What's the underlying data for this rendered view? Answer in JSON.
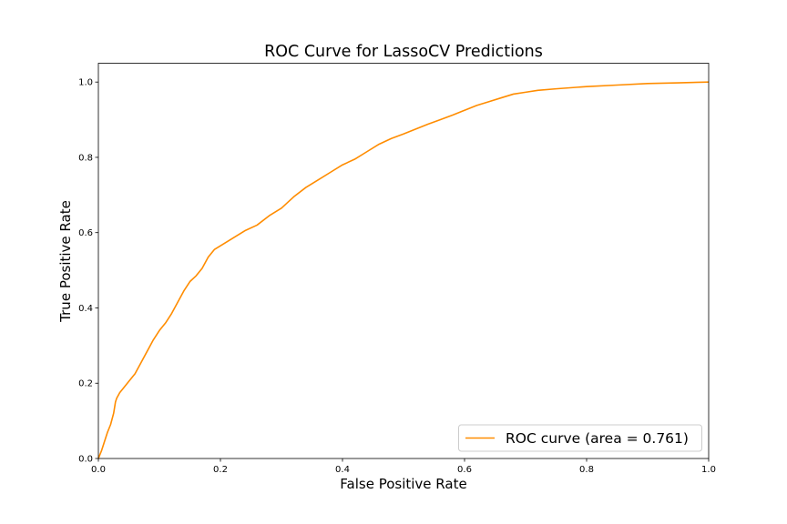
{
  "chart_data": {
    "type": "line",
    "title": "ROC Curve for LassoCV Predictions",
    "xlabel": "False Positive Rate",
    "ylabel": "True Positive Rate",
    "xlim": [
      0.0,
      1.0
    ],
    "ylim": [
      0.0,
      1.05
    ],
    "xticks": [
      {
        "value": 0.0,
        "label": "0.0"
      },
      {
        "value": 0.2,
        "label": "0.2"
      },
      {
        "value": 0.4,
        "label": "0.4"
      },
      {
        "value": 0.6,
        "label": "0.6"
      },
      {
        "value": 0.8,
        "label": "0.8"
      },
      {
        "value": 1.0,
        "label": "1.0"
      }
    ],
    "yticks": [
      {
        "value": 0.0,
        "label": "0.0"
      },
      {
        "value": 0.2,
        "label": "0.2"
      },
      {
        "value": 0.4,
        "label": "0.4"
      },
      {
        "value": 0.6,
        "label": "0.6"
      },
      {
        "value": 0.8,
        "label": "0.8"
      },
      {
        "value": 1.0,
        "label": "1.0"
      }
    ],
    "grid": false,
    "legend": {
      "placement": "lower-right"
    },
    "series": [
      {
        "name": "ROC curve (area = 0.761)",
        "color": "#ff8c00",
        "x": [
          0.0,
          0.005,
          0.01,
          0.015,
          0.02,
          0.025,
          0.028,
          0.03,
          0.035,
          0.04,
          0.05,
          0.06,
          0.07,
          0.08,
          0.09,
          0.1,
          0.11,
          0.12,
          0.13,
          0.14,
          0.15,
          0.16,
          0.17,
          0.18,
          0.19,
          0.2,
          0.22,
          0.24,
          0.26,
          0.28,
          0.3,
          0.32,
          0.34,
          0.36,
          0.38,
          0.4,
          0.42,
          0.44,
          0.46,
          0.48,
          0.5,
          0.52,
          0.54,
          0.56,
          0.58,
          0.6,
          0.62,
          0.64,
          0.66,
          0.68,
          0.7,
          0.72,
          0.75,
          0.8,
          0.85,
          0.9,
          0.95,
          1.0
        ],
        "y": [
          0.0,
          0.02,
          0.045,
          0.07,
          0.09,
          0.12,
          0.15,
          0.16,
          0.175,
          0.185,
          0.205,
          0.225,
          0.255,
          0.285,
          0.315,
          0.34,
          0.36,
          0.385,
          0.415,
          0.445,
          0.47,
          0.485,
          0.505,
          0.535,
          0.555,
          0.565,
          0.585,
          0.605,
          0.62,
          0.645,
          0.665,
          0.695,
          0.72,
          0.74,
          0.76,
          0.78,
          0.795,
          0.815,
          0.835,
          0.85,
          0.862,
          0.875,
          0.888,
          0.9,
          0.912,
          0.925,
          0.938,
          0.948,
          0.958,
          0.968,
          0.973,
          0.978,
          0.982,
          0.988,
          0.992,
          0.996,
          0.998,
          1.0
        ]
      }
    ]
  }
}
